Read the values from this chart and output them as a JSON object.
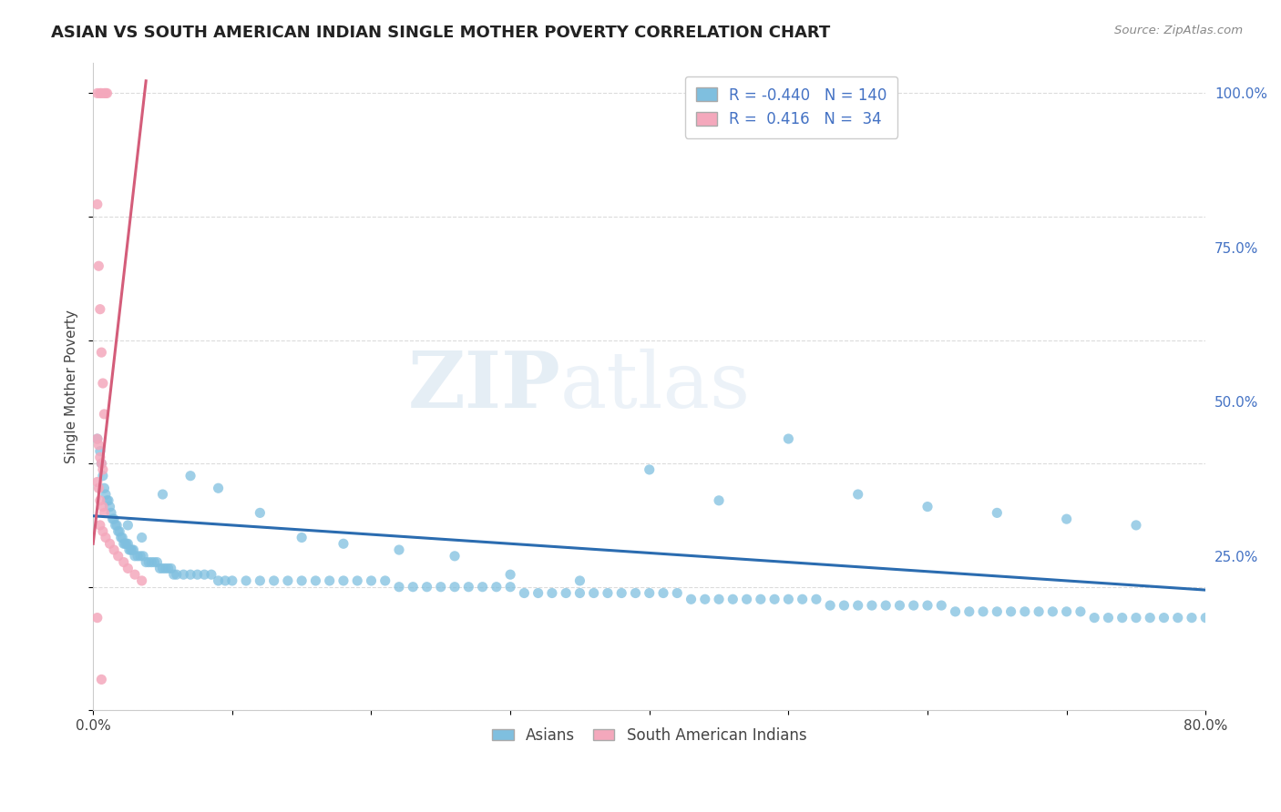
{
  "title": "ASIAN VS SOUTH AMERICAN INDIAN SINGLE MOTHER POVERTY CORRELATION CHART",
  "source": "Source: ZipAtlas.com",
  "ylabel": "Single Mother Poverty",
  "watermark": "ZIPatlas",
  "legend_blue_r": "-0.440",
  "legend_blue_n": "140",
  "legend_pink_r": "0.416",
  "legend_pink_n": "34",
  "blue_color": "#7fbfdf",
  "pink_color": "#f4a8bc",
  "blue_line_color": "#2b6cb0",
  "pink_line_color": "#d45d7a",
  "background_color": "#ffffff",
  "grid_color": "#d8d8d8",
  "blue_scatter_x": [
    0.003,
    0.005,
    0.006,
    0.007,
    0.008,
    0.009,
    0.01,
    0.011,
    0.012,
    0.013,
    0.014,
    0.015,
    0.016,
    0.017,
    0.018,
    0.019,
    0.02,
    0.021,
    0.022,
    0.023,
    0.024,
    0.025,
    0.026,
    0.027,
    0.028,
    0.029,
    0.03,
    0.032,
    0.034,
    0.036,
    0.038,
    0.04,
    0.042,
    0.044,
    0.046,
    0.048,
    0.05,
    0.052,
    0.054,
    0.056,
    0.058,
    0.06,
    0.065,
    0.07,
    0.075,
    0.08,
    0.085,
    0.09,
    0.095,
    0.1,
    0.11,
    0.12,
    0.13,
    0.14,
    0.15,
    0.16,
    0.17,
    0.18,
    0.19,
    0.2,
    0.21,
    0.22,
    0.23,
    0.24,
    0.25,
    0.26,
    0.27,
    0.28,
    0.29,
    0.3,
    0.31,
    0.32,
    0.33,
    0.34,
    0.35,
    0.36,
    0.37,
    0.38,
    0.39,
    0.4,
    0.41,
    0.42,
    0.43,
    0.44,
    0.45,
    0.46,
    0.47,
    0.48,
    0.49,
    0.5,
    0.51,
    0.52,
    0.53,
    0.54,
    0.55,
    0.56,
    0.57,
    0.58,
    0.59,
    0.6,
    0.61,
    0.62,
    0.63,
    0.64,
    0.65,
    0.66,
    0.67,
    0.68,
    0.69,
    0.7,
    0.71,
    0.72,
    0.73,
    0.74,
    0.75,
    0.76,
    0.77,
    0.78,
    0.79,
    0.8,
    0.05,
    0.07,
    0.09,
    0.12,
    0.15,
    0.18,
    0.22,
    0.26,
    0.3,
    0.35,
    0.4,
    0.45,
    0.5,
    0.55,
    0.6,
    0.65,
    0.7,
    0.75,
    0.025,
    0.035
  ],
  "blue_scatter_y": [
    0.44,
    0.42,
    0.4,
    0.38,
    0.36,
    0.35,
    0.34,
    0.34,
    0.33,
    0.32,
    0.31,
    0.31,
    0.3,
    0.3,
    0.29,
    0.29,
    0.28,
    0.28,
    0.27,
    0.27,
    0.27,
    0.27,
    0.26,
    0.26,
    0.26,
    0.26,
    0.25,
    0.25,
    0.25,
    0.25,
    0.24,
    0.24,
    0.24,
    0.24,
    0.24,
    0.23,
    0.23,
    0.23,
    0.23,
    0.23,
    0.22,
    0.22,
    0.22,
    0.22,
    0.22,
    0.22,
    0.22,
    0.21,
    0.21,
    0.21,
    0.21,
    0.21,
    0.21,
    0.21,
    0.21,
    0.21,
    0.21,
    0.21,
    0.21,
    0.21,
    0.21,
    0.2,
    0.2,
    0.2,
    0.2,
    0.2,
    0.2,
    0.2,
    0.2,
    0.2,
    0.19,
    0.19,
    0.19,
    0.19,
    0.19,
    0.19,
    0.19,
    0.19,
    0.19,
    0.19,
    0.19,
    0.19,
    0.18,
    0.18,
    0.18,
    0.18,
    0.18,
    0.18,
    0.18,
    0.18,
    0.18,
    0.18,
    0.17,
    0.17,
    0.17,
    0.17,
    0.17,
    0.17,
    0.17,
    0.17,
    0.17,
    0.16,
    0.16,
    0.16,
    0.16,
    0.16,
    0.16,
    0.16,
    0.16,
    0.16,
    0.16,
    0.15,
    0.15,
    0.15,
    0.15,
    0.15,
    0.15,
    0.15,
    0.15,
    0.15,
    0.35,
    0.38,
    0.36,
    0.32,
    0.28,
    0.27,
    0.26,
    0.25,
    0.22,
    0.21,
    0.39,
    0.34,
    0.44,
    0.35,
    0.33,
    0.32,
    0.31,
    0.3,
    0.3,
    0.28
  ],
  "pink_scatter_x": [
    0.003,
    0.005,
    0.006,
    0.008,
    0.009,
    0.01,
    0.003,
    0.004,
    0.005,
    0.006,
    0.007,
    0.008,
    0.003,
    0.004,
    0.005,
    0.006,
    0.007,
    0.003,
    0.004,
    0.005,
    0.007,
    0.008,
    0.005,
    0.007,
    0.009,
    0.012,
    0.015,
    0.018,
    0.022,
    0.025,
    0.03,
    0.035,
    0.003,
    0.006
  ],
  "pink_scatter_y": [
    1.0,
    1.0,
    1.0,
    1.0,
    1.0,
    1.0,
    0.82,
    0.72,
    0.65,
    0.58,
    0.53,
    0.48,
    0.44,
    0.43,
    0.41,
    0.4,
    0.39,
    0.37,
    0.36,
    0.34,
    0.33,
    0.32,
    0.3,
    0.29,
    0.28,
    0.27,
    0.26,
    0.25,
    0.24,
    0.23,
    0.22,
    0.21,
    0.15,
    0.05
  ],
  "blue_trendline_x": [
    0.0,
    0.8
  ],
  "blue_trendline_y": [
    0.315,
    0.195
  ],
  "pink_trendline_x": [
    0.0,
    0.038
  ],
  "pink_trendline_y": [
    0.27,
    1.02
  ],
  "xmin": 0.0,
  "xmax": 0.8,
  "ymin": 0.0,
  "ymax": 1.05,
  "x_ticks": [
    0.0,
    0.1,
    0.2,
    0.3,
    0.4,
    0.5,
    0.6,
    0.7,
    0.8
  ],
  "x_tick_labels": [
    "0.0%",
    "",
    "",
    "",
    "",
    "",
    "",
    "",
    "80.0%"
  ],
  "y_ticks": [
    0.25,
    0.5,
    0.75,
    1.0
  ],
  "y_tick_labels": [
    "25.0%",
    "50.0%",
    "75.0%",
    "100.0%"
  ]
}
